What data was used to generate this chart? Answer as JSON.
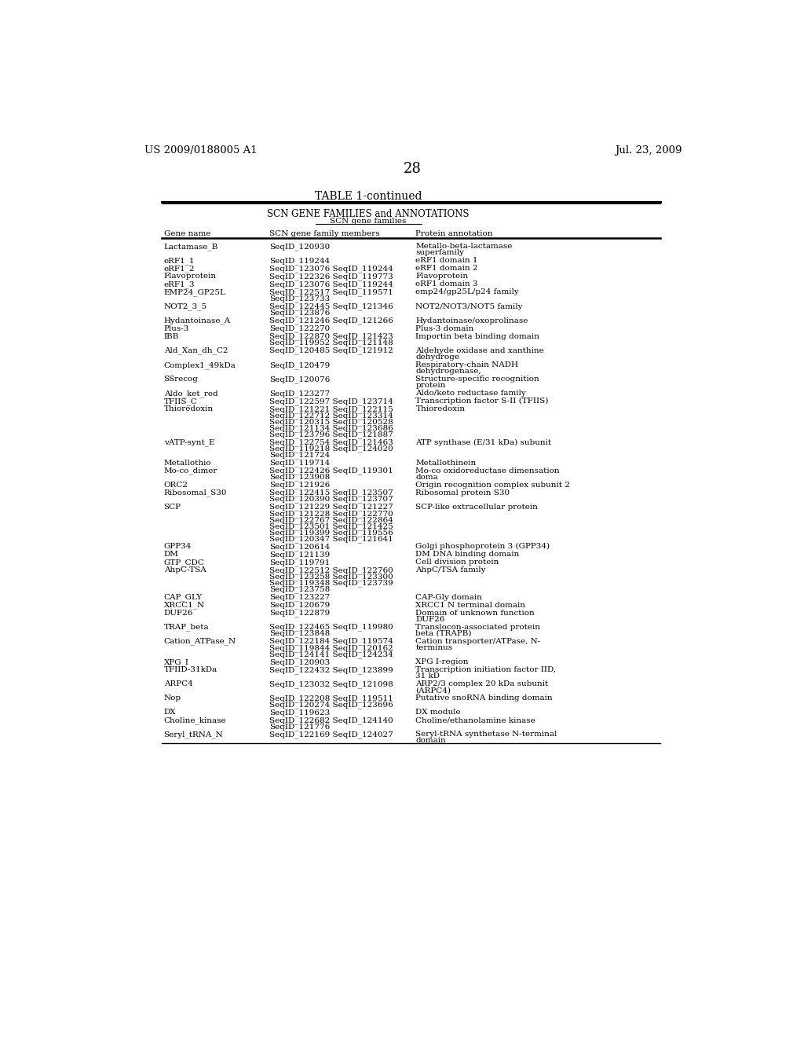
{
  "page_header_left": "US 2009/0188005 A1",
  "page_header_right": "Jul. 23, 2009",
  "page_number": "28",
  "table_title": "TABLE 1-continued",
  "table_header_line1": "SCN GENE FAMILIES and ANNOTATIONS",
  "table_header_line2": "SCN gene families",
  "col1_header": "Gene name",
  "col2_header": "SCN gene family members",
  "col3_header": "Protein annotation",
  "rows": [
    [
      "Lactamase_B",
      "SeqID_120930",
      "Metallo-beta-lactamase\nsuperfamily"
    ],
    [
      "eRF1_1",
      "SeqID_119244",
      "eRF1 domain 1"
    ],
    [
      "eRF1_2",
      "SeqID_123076 SeqID_119244",
      "eRF1 domain 2"
    ],
    [
      "Flavoprotein",
      "SeqID_122326 SeqID_119773",
      "Flavoprotein"
    ],
    [
      "eRF1_3",
      "SeqID_123076 SeqID_119244",
      "eRF1 domain 3"
    ],
    [
      "EMP24_GP25L",
      "SeqID_122517 SeqID_119571\nSeqID_123733",
      "emp24/gp25L/p24 family"
    ],
    [
      "NOT2_3_5",
      "SeqID_122445 SeqID_121346\nSeqID_123876",
      "NOT2/NOT3/NOT5 family"
    ],
    [
      "Hydantoinase_A",
      "SeqID_121246 SeqID_121266",
      "Hydantoinase/oxoprolinase"
    ],
    [
      "Plus-3",
      "SeqID_122270",
      "Plus-3 domain"
    ],
    [
      "IBB",
      "SeqID_122870 SeqID_121423\nSeqID_119952 SeqID_121148",
      "Importin beta binding domain"
    ],
    [
      "Ald_Xan_dh_C2",
      "SeqID_120485 SeqID_121912",
      "Aldehyde oxidase and xanthine\ndehydroge"
    ],
    [
      "Complex1_49kDa",
      "SeqID_120479",
      "Respiratory-chain NADH\ndehydrogenase,"
    ],
    [
      "SSrecog",
      "SeqID_120076",
      "Structure-specific recognition\nprotein"
    ],
    [
      "Aldo_ket_red",
      "SeqID_123277",
      "Aldo/keto reductase family"
    ],
    [
      "TFIIS_C",
      "SeqID_122597 SeqID_123714",
      "Transcription factor S-II (TFIIS)"
    ],
    [
      "Thioredoxin",
      "SeqID_121221 SeqID_122115\nSeqID_122712 SeqID_123314\nSeqID_120315 SeqID_120528\nSeqID_121134 SeqID_123686\nSeqID_123796 SeqID_121887",
      "Thioredoxin"
    ],
    [
      "vATP-synt_E",
      "SeqID_122754 SeqID_121463\nSeqID_119218 SeqID_124020\nSeqID_121724",
      "ATP synthase (E/31 kDa) subunit"
    ],
    [
      "Metallothio",
      "SeqID_119714",
      "Metallothinein"
    ],
    [
      "Mo-co_dimer",
      "SeqID_122426 SeqID_119301\nSeqID_123908",
      "Mo-co oxidoreductase dimensation\ndoma"
    ],
    [
      "ORC2",
      "SeqID_121926",
      "Origin recognition complex subunit 2"
    ],
    [
      "Ribosomal_S30",
      "SeqID_122415 SeqID_123507\nSeqID_120390 SeqID_123707",
      "Ribosomal protein S30"
    ],
    [
      "SCP",
      "SeqID_121229 SeqID_121227\nSeqID_121228 SeqID_122770\nSeqID_122767 SeqID_122864\nSeqID_123501 SeqID_121425\nSeqID_119399 SeqID_119556\nSeqID_120347 SeqID_121641",
      "SCP-like extracellular protein"
    ],
    [
      "GPP34",
      "SeqID_120614",
      "Golgi phosphoprotein 3 (GPP34)"
    ],
    [
      "DM",
      "SeqID_121139",
      "DM DNA binding domain"
    ],
    [
      "GTP_CDC",
      "SeqID_119791",
      "Cell division protein"
    ],
    [
      "AhpC-TSA",
      "SeqID_122512 SeqID_122760\nSeqID_123258 SeqID_123300\nSeqID_119348 SeqID_123739\nSeqID_123758",
      "AhpC/TSA family"
    ],
    [
      "CAP_GLY",
      "SeqID_123227",
      "CAP-Gly domain"
    ],
    [
      "XRCC1_N",
      "SeqID_120679",
      "XRCC1 N terminal domain"
    ],
    [
      "DUF26",
      "SeqID_122879",
      "Domain of unknown function\nDUF26"
    ],
    [
      "TRAP_beta",
      "SeqID_122465 SeqID_119980\nSeqID_123848",
      "Translocon-associated protein\nbeta (TRAPB)"
    ],
    [
      "Cation_ATPase_N",
      "SeqID_122184 SeqID_119574\nSeqID_119844 SeqID_120162\nSeqID_124141 SeqID_124234",
      "Cation transporter/ATPase, N-\nterminus"
    ],
    [
      "XPG_I",
      "SeqID_120903",
      "XPG I-region"
    ],
    [
      "TFIID-31kDa",
      "SeqID_122432 SeqID_123899",
      "Transcription initiation factor IID,\n31 kD"
    ],
    [
      "ARPC4",
      "SeqID_123032 SeqID_121098",
      "ARP2/3 complex 20 kDa subunit\n(ARPC4)"
    ],
    [
      "Nop",
      "SeqID_122208 SeqID_119511\nSeqID_120274 SeqID_123696",
      "Putative snoRNA binding domain"
    ],
    [
      "DX",
      "SeqID_119623",
      "DX module"
    ],
    [
      "Choline_kinase",
      "SeqID_122682 SeqID_124140\nSeqID_121776",
      "Choline/ethanolamine kinase"
    ],
    [
      "Seryl_tRNA_N",
      "SeqID_122169 SeqID_124027",
      "Seryl-tRNA synthetase N-terminal\ndomain"
    ]
  ],
  "bg_color": "#ffffff",
  "text_color": "#000000",
  "font_size": 7.5,
  "header_font_size": 8.5,
  "title_font_size": 10.0,
  "page_header_font_size": 9.5
}
